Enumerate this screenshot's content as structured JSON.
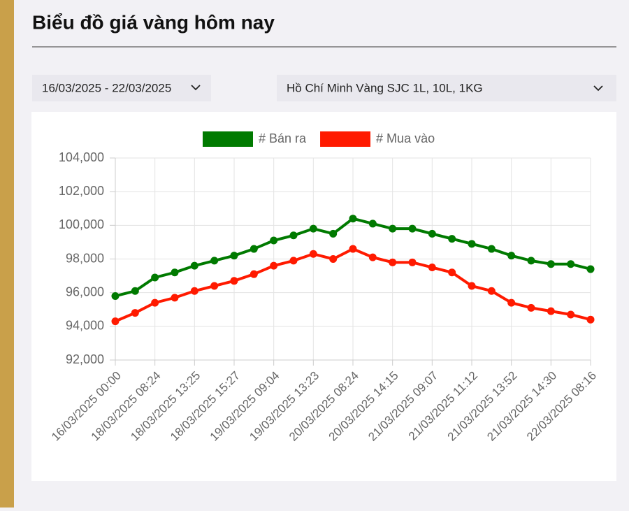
{
  "header": {
    "title": "Biểu đồ giá vàng hôm nay"
  },
  "filters": {
    "date_range": "16/03/2025 - 22/03/2025",
    "location": "Hồ Chí Minh Vàng SJC 1L, 10L, 1KG"
  },
  "chart_data": {
    "type": "line",
    "categories": [
      "16/03/2025 00:00",
      null,
      "18/03/2025 08:24",
      null,
      "18/03/2025 13:25",
      null,
      "18/03/2025 15:27",
      null,
      "19/03/2025 09:04",
      null,
      "19/03/2025 13:23",
      null,
      "20/03/2025 08:24",
      null,
      "20/03/2025 14:15",
      null,
      "21/03/2025 09:07",
      null,
      "21/03/2025 11:12",
      null,
      "21/03/2025 13:52",
      null,
      "21/03/2025 14:30",
      null,
      "22/03/2025 08:16"
    ],
    "series": [
      {
        "name": "# Bán ra",
        "color": "#007a00",
        "values": [
          95800,
          96100,
          96900,
          97200,
          97600,
          97900,
          98200,
          98600,
          99100,
          99400,
          99800,
          99500,
          100400,
          100100,
          99800,
          99800,
          99500,
          99200,
          98900,
          98600,
          98200,
          97900,
          97700,
          97700,
          97400
        ]
      },
      {
        "name": "# Mua vào",
        "color": "#ff1a00",
        "values": [
          94300,
          94800,
          95400,
          95700,
          96100,
          96400,
          96700,
          97100,
          97600,
          97900,
          98300,
          98000,
          98600,
          98100,
          97800,
          97800,
          97500,
          97200,
          96400,
          96100,
          95400,
          95100,
          94900,
          94700,
          94400
        ]
      }
    ],
    "ylim": [
      92000,
      104000
    ],
    "yticks": [
      {
        "value": 92000,
        "label": "92,000"
      },
      {
        "value": 94000,
        "label": "94,000"
      },
      {
        "value": 96000,
        "label": "96,000"
      },
      {
        "value": 98000,
        "label": "98,000"
      },
      {
        "value": 100000,
        "label": "100,000"
      },
      {
        "value": 102000,
        "label": "102,000"
      },
      {
        "value": 104000,
        "label": "104,000"
      }
    ],
    "grid": true,
    "legend": "top"
  }
}
